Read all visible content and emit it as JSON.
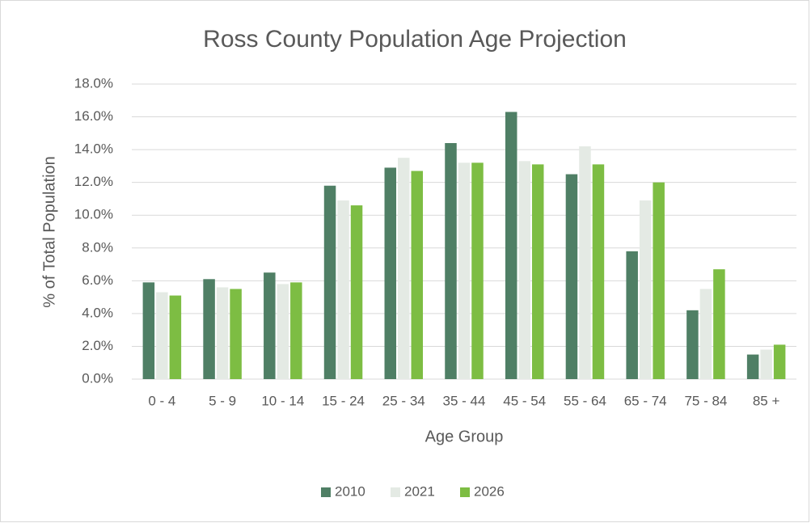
{
  "chart_data": {
    "type": "bar",
    "title": "Ross County Population Age Projection",
    "x_label": "Age Group",
    "y_label": "% of Total Population",
    "categories": [
      "0 - 4",
      "5 - 9",
      "10 - 14",
      "15 - 24",
      "25 - 34",
      "35 - 44",
      "45 - 54",
      "55 - 64",
      "65 - 74",
      "75 - 84",
      "85 +"
    ],
    "series": [
      {
        "name": "2010",
        "color": "#4f7f65",
        "values": [
          5.9,
          6.1,
          6.5,
          11.8,
          12.9,
          14.4,
          16.3,
          12.5,
          7.8,
          4.2,
          1.5
        ]
      },
      {
        "name": "2021",
        "color": "#e4eae4",
        "values": [
          5.3,
          5.6,
          5.8,
          10.9,
          13.5,
          13.2,
          13.3,
          14.2,
          10.9,
          5.5,
          1.8
        ]
      },
      {
        "name": "2026",
        "color": "#7dbd43",
        "values": [
          5.1,
          5.5,
          5.9,
          10.6,
          12.7,
          13.2,
          13.1,
          13.1,
          12.0,
          6.7,
          2.1
        ]
      }
    ],
    "ylim": [
      0,
      18
    ],
    "yticks": [
      {
        "value": 0,
        "label": "0.0%"
      },
      {
        "value": 2,
        "label": "2.0%"
      },
      {
        "value": 4,
        "label": "4.0%"
      },
      {
        "value": 6,
        "label": "6.0%"
      },
      {
        "value": 8,
        "label": "8.0%"
      },
      {
        "value": 10,
        "label": "10.0%"
      },
      {
        "value": 12,
        "label": "12.0%"
      },
      {
        "value": 14,
        "label": "14.0%"
      },
      {
        "value": 16,
        "label": "16.0%"
      },
      {
        "value": 18,
        "label": "18.0%"
      }
    ],
    "grid": true,
    "legend": "bottom"
  }
}
